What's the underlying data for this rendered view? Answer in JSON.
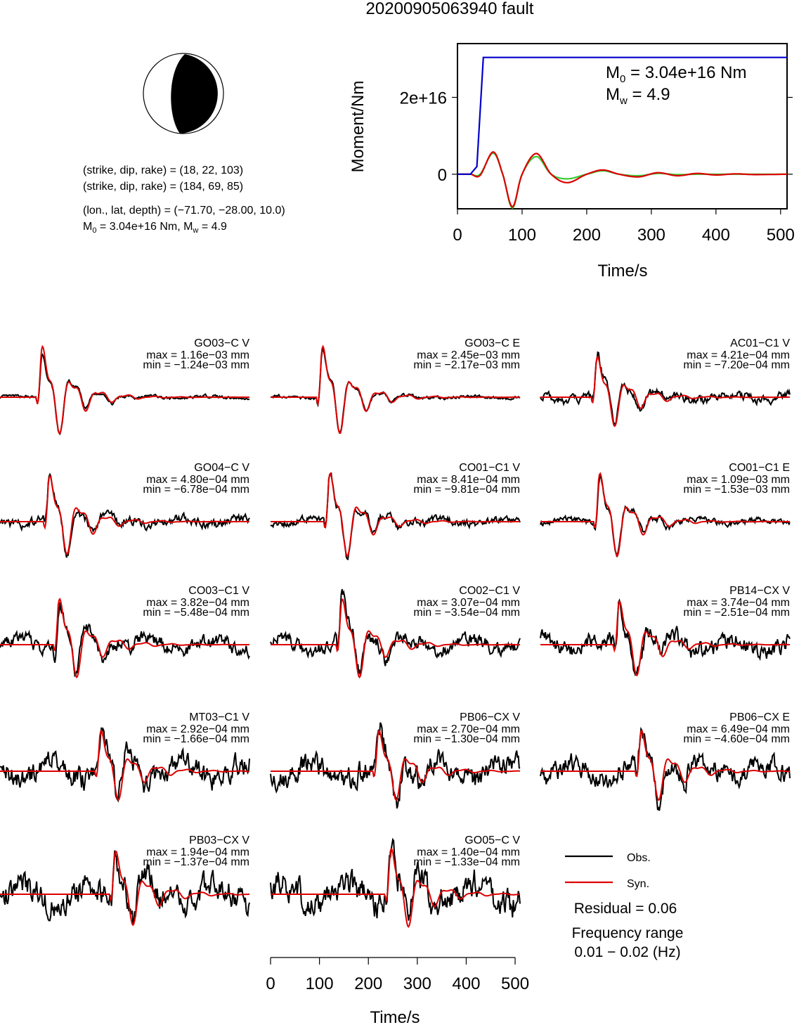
{
  "title": "20200905063940 fault",
  "beachball": {
    "np1": "(strike, dip, rake) = (18, 22, 103)",
    "np2": "(strike, dip, rake) = (184, 69, 85)",
    "location": "(lon., lat, depth) = (−71.70, −28.00, 10.0)",
    "moment_line": {
      "m0_prefix": "M",
      "m0_sub": "0",
      "m0_value": " = 3.04e+16 Nm, M",
      "mw_sub": "w",
      "mw_value": " = 4.9"
    }
  },
  "moment_panel": {
    "m0_label": {
      "prefix": "M",
      "sub": "0",
      "value": " = 3.04e+16 Nm"
    },
    "mw_label": {
      "prefix": "M",
      "sub": "w",
      "value": " = 4.9"
    }
  },
  "legend": {
    "obs": "Obs.",
    "syn": "Syn.",
    "residual": "Residual = 0.06",
    "freq_title": "Frequency range",
    "freq_value": "0.01 − 0.02 (Hz)"
  },
  "colors": {
    "obs": "#000000",
    "syn": "#dd0000",
    "moment_rate_syn": "#dd0000",
    "moment_rate_alt": "#33cc33",
    "cumulative_moment": "#0000cc"
  },
  "chart_data": [
    {
      "type": "line",
      "name": "moment",
      "xlabel": "Time/s",
      "ylabel": "Moment/Nm",
      "xlim": [
        0,
        510
      ],
      "ylim": [
        -9000000000000000.0,
        3.4e+16
      ],
      "xticks": [
        0,
        100,
        200,
        300,
        400,
        500
      ],
      "xtick_labels": [
        "0",
        "100",
        "200",
        "300",
        "400",
        "500"
      ],
      "yticks": [
        0,
        2e+16
      ],
      "ytick_labels": [
        "0",
        "2e+16"
      ],
      "series": [
        {
          "role": "cumulative",
          "color": "#0000cc",
          "x": [
            0,
            20,
            30,
            40,
            510
          ],
          "y": [
            0,
            0,
            2000000000000000.0,
            3.04e+16,
            3.04e+16
          ]
        },
        {
          "role": "rate_green",
          "color": "#33cc33",
          "x": [
            0,
            20,
            35,
            55,
            70,
            85,
            100,
            122,
            145,
            170,
            200,
            225,
            250,
            280,
            310,
            340,
            370,
            400,
            430,
            460,
            510
          ],
          "y": [
            0,
            0,
            0,
            5500000000000000.0,
            0,
            -8800000000000000.0,
            0,
            4600000000000000.0,
            0,
            -1200000000000000.0,
            0,
            900000000000000.0,
            0,
            -400000000000000.0,
            200000000000000.0,
            -100000000000000.0,
            0,
            0,
            0,
            0,
            0
          ]
        },
        {
          "role": "rate_red",
          "color": "#dd0000",
          "x": [
            0,
            20,
            35,
            55,
            70,
            85,
            100,
            122,
            145,
            170,
            200,
            225,
            250,
            280,
            310,
            340,
            370,
            400,
            430,
            460,
            510
          ],
          "y": [
            0,
            0,
            -300000000000000.0,
            5800000000000000.0,
            0,
            -8500000000000000.0,
            0,
            5400000000000000.0,
            0,
            -2200000000000000.0,
            0,
            1100000000000000.0,
            0,
            -700000000000000.0,
            400000000000000.0,
            -400000000000000.0,
            200000000000000.0,
            -200000000000000.0,
            100000000000000.0,
            -100000000000000.0,
            0
          ]
        }
      ]
    },
    {
      "type": "line",
      "name": "waveforms",
      "xlabel": "Time/s",
      "xlim": [
        0,
        510
      ],
      "xticks": [
        0,
        100,
        200,
        300,
        400,
        500
      ],
      "xtick_labels": [
        "0",
        "100",
        "200",
        "300",
        "400",
        "500"
      ],
      "legend": [
        "Obs.",
        "Syn."
      ],
      "stations": [
        {
          "label": "GO03−C V",
          "max": "max = 1.16e−03 mm",
          "min": "min = −1.24e−03 mm",
          "onset": 80,
          "amp": 1.0,
          "noise": 0.05
        },
        {
          "label": "GO03−C E",
          "max": "max = 2.45e−03 mm",
          "min": "min = −2.17e−03 mm",
          "onset": 100,
          "amp": 1.0,
          "noise": 0.05
        },
        {
          "label": "AC01−C1 V",
          "max": "max = 4.21e−04 mm",
          "min": "min = −7.20e−04 mm",
          "onset": 110,
          "amp": 0.8,
          "noise": 0.15
        },
        {
          "label": "GO04−C V",
          "max": "max = 4.80e−04 mm",
          "min": "min = −6.78e−04 mm",
          "onset": 95,
          "amp": 0.9,
          "noise": 0.15
        },
        {
          "label": "CO01−C1 V",
          "max": "max = 8.41e−04 mm",
          "min": "min = −9.81e−04 mm",
          "onset": 115,
          "amp": 0.95,
          "noise": 0.12
        },
        {
          "label": "CO01−C1 E",
          "max": "max = 1.09e−03 mm",
          "min": "min = −1.53e−03 mm",
          "onset": 115,
          "amp": 0.95,
          "noise": 0.1
        },
        {
          "label": "CO03−C1 V",
          "max": "max = 3.82e−04 mm",
          "min": "min = −5.48e−04 mm",
          "onset": 115,
          "amp": 0.9,
          "noise": 0.25
        },
        {
          "label": "CO02−C1 V",
          "max": "max = 3.07e−04 mm",
          "min": "min = −3.54e−04 mm",
          "onset": 140,
          "amp": 0.9,
          "noise": 0.25
        },
        {
          "label": "PB14−CX V",
          "max": "max = 3.74e−04 mm",
          "min": "min = −2.51e−04 mm",
          "onset": 155,
          "amp": 0.85,
          "noise": 0.3
        },
        {
          "label": "MT03−C1 V",
          "max": "max = 2.92e−04 mm",
          "min": "min = −1.66e−04 mm",
          "onset": 200,
          "amp": 0.8,
          "noise": 0.4
        },
        {
          "label": "PB06−CX V",
          "max": "max = 2.70e−04 mm",
          "min": "min = −1.30e−04 mm",
          "onset": 215,
          "amp": 0.8,
          "noise": 0.4
        },
        {
          "label": "PB06−CX E",
          "max": "max = 6.49e−04 mm",
          "min": "min = −4.60e−04 mm",
          "onset": 200,
          "amp": 0.8,
          "noise": 0.35
        },
        {
          "label": "PB03−CX V",
          "max": "max = 1.94e−04 mm",
          "min": "min = −1.37e−04 mm",
          "onset": 230,
          "amp": 0.85,
          "noise": 0.45
        },
        {
          "label": "GO05−C V",
          "max": "max = 1.40e−04 mm",
          "min": "min = −1.33e−04 mm",
          "onset": 240,
          "amp": 0.9,
          "noise": 0.5
        }
      ]
    }
  ]
}
